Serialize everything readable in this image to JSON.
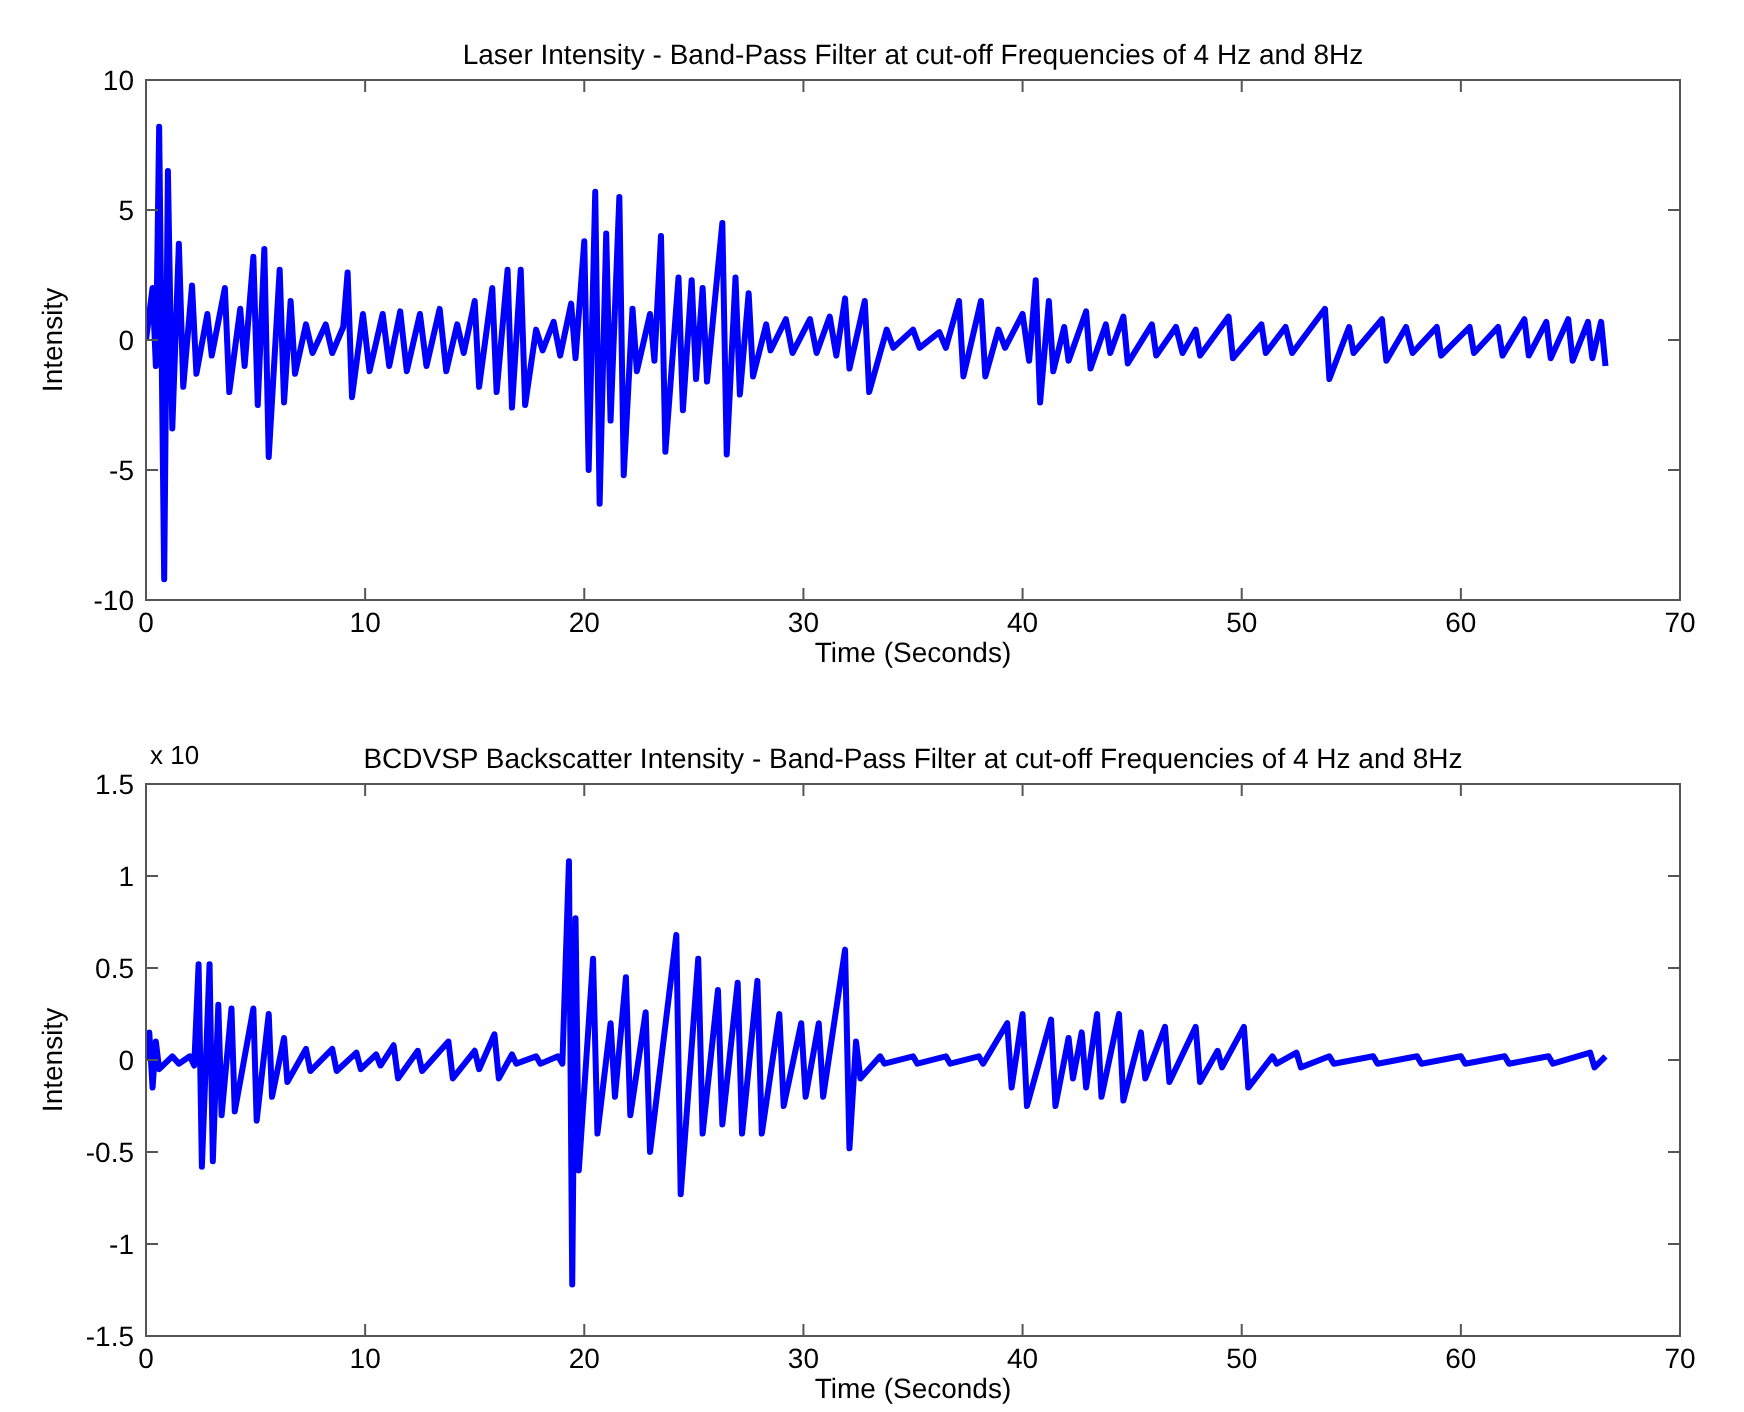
{
  "chart_data": [
    {
      "type": "line",
      "title": "Laser Intensity - Band-Pass Filter at cut-off Frequencies of 4 Hz and 8Hz",
      "xlabel": "Time (Seconds)",
      "ylabel": "Intensity",
      "xlim": [
        0,
        70
      ],
      "xticks": [
        0,
        10,
        20,
        30,
        40,
        50,
        60,
        70
      ],
      "ylim": [
        -10,
        10
      ],
      "yticks": [
        -10,
        -5,
        0,
        5,
        10
      ],
      "grid": false,
      "marker": "none",
      "line_style": "solid",
      "series": [
        {
          "color": "#0000ff",
          "x": [
            0,
            0.3,
            0.45,
            0.6,
            0.83,
            1.0,
            1.2,
            1.5,
            1.7,
            2.1,
            2.3,
            2.8,
            3.0,
            3.6,
            3.8,
            4.3,
            4.5,
            4.9,
            5.1,
            5.4,
            5.6,
            6.1,
            6.3,
            6.6,
            6.8,
            7.3,
            7.6,
            8.2,
            8.5,
            9.0,
            9.2,
            9.4,
            9.9,
            10.2,
            10.8,
            11.1,
            11.6,
            11.9,
            12.5,
            12.8,
            13.4,
            13.7,
            14.2,
            14.5,
            15.0,
            15.2,
            15.8,
            16.0,
            16.5,
            16.7,
            17.1,
            17.3,
            17.8,
            18.1,
            18.6,
            18.9,
            19.4,
            19.6,
            20.0,
            20.2,
            20.5,
            20.7,
            21.0,
            21.2,
            21.6,
            21.8,
            22.2,
            22.4,
            23.0,
            23.2,
            23.5,
            23.7,
            24.3,
            24.5,
            24.9,
            25.1,
            25.4,
            25.6,
            26.3,
            26.5,
            26.9,
            27.1,
            27.5,
            27.7,
            28.3,
            28.5,
            29.2,
            29.5,
            30.3,
            30.6,
            31.2,
            31.5,
            31.9,
            32.1,
            32.8,
            33.0,
            33.8,
            34.1,
            35.0,
            35.3,
            36.2,
            36.5,
            37.1,
            37.3,
            38.1,
            38.3,
            38.9,
            39.2,
            40.0,
            40.3,
            40.6,
            40.8,
            41.2,
            41.4,
            41.9,
            42.1,
            42.9,
            43.1,
            43.8,
            44.0,
            44.6,
            44.8,
            45.9,
            46.1,
            47.0,
            47.3,
            47.9,
            48.1,
            49.4,
            49.6,
            50.9,
            51.1,
            52.0,
            52.3,
            53.8,
            54.0,
            54.9,
            55.1,
            56.4,
            56.6,
            57.5,
            57.8,
            58.9,
            59.1,
            60.4,
            60.6,
            61.7,
            61.9,
            62.9,
            63.1,
            63.9,
            64.1,
            64.9,
            65.1,
            65.8,
            66.0,
            66.4,
            66.6
          ],
          "values": [
            0,
            2,
            -1,
            8.2,
            -9.2,
            6.5,
            -3.4,
            3.7,
            -1.8,
            2.1,
            -1.3,
            1,
            -0.6,
            2.0,
            -2.0,
            1.2,
            -1.0,
            3.2,
            -2.5,
            3.5,
            -4.5,
            2.7,
            -2.4,
            1.5,
            -1.3,
            0.6,
            -0.5,
            0.6,
            -0.5,
            0.5,
            2.6,
            -2.2,
            1.0,
            -1.2,
            1.0,
            -1.0,
            1.1,
            -1.2,
            1.0,
            -1.0,
            1.2,
            -1.2,
            0.6,
            -0.5,
            1.5,
            -1.8,
            2.0,
            -2.0,
            2.7,
            -2.6,
            2.7,
            -2.5,
            0.4,
            -0.4,
            0.7,
            -0.6,
            1.4,
            -0.7,
            3.8,
            -5,
            5.7,
            -6.3,
            4.1,
            -3.1,
            5.5,
            -5.2,
            1.2,
            -1.2,
            1.0,
            -0.8,
            4.0,
            -4.3,
            2.4,
            -2.7,
            2.3,
            -1.5,
            2.0,
            -1.6,
            4.5,
            -4.4,
            2.4,
            -2.1,
            1.8,
            -1.4,
            0.6,
            -0.4,
            0.8,
            -0.5,
            0.8,
            -0.5,
            0.9,
            -0.6,
            1.6,
            -1.1,
            1.5,
            -2.0,
            0.4,
            -0.3,
            0.4,
            -0.3,
            0.3,
            -0.3,
            1.5,
            -1.4,
            1.5,
            -1.4,
            0.4,
            -0.3,
            1.0,
            -0.8,
            2.3,
            -2.4,
            1.5,
            -1.2,
            0.5,
            -0.8,
            1.1,
            -1.1,
            0.6,
            -0.5,
            0.9,
            -0.9,
            0.6,
            -0.6,
            0.5,
            -0.5,
            0.4,
            -0.6,
            0.9,
            -0.7,
            0.6,
            -0.5,
            0.5,
            -0.5,
            1.2,
            -1.5,
            0.5,
            -0.5,
            0.8,
            -0.8,
            0.5,
            -0.5,
            0.5,
            -0.6,
            0.5,
            -0.5,
            0.5,
            -0.6,
            0.8,
            -0.6,
            0.7,
            -0.7,
            0.8,
            -0.8,
            0.7,
            -0.7,
            0.7,
            -1.0
          ]
        }
      ]
    },
    {
      "type": "line",
      "title": "BCDVSP Backscatter Intensity - Band-Pass Filter at cut-off Frequencies of 4 Hz and 8Hz",
      "xlabel": "Time (Seconds)",
      "ylabel": "Intensity",
      "annotations": [
        "x 10"
      ],
      "xlim": [
        0,
        70
      ],
      "xticks": [
        0,
        10,
        20,
        30,
        40,
        50,
        60,
        70
      ],
      "ylim": [
        -1.5,
        1.5
      ],
      "yticks": [
        -1.5,
        -1,
        -0.5,
        0,
        0.5,
        1,
        1.5
      ],
      "grid": false,
      "marker": "none",
      "line_style": "solid",
      "series": [
        {
          "color": "#0000ff",
          "x": [
            0,
            0.15,
            0.3,
            0.45,
            0.6,
            1.2,
            1.5,
            2.0,
            2.2,
            2.4,
            2.55,
            2.9,
            3.05,
            3.3,
            3.45,
            3.9,
            4.05,
            4.9,
            5.05,
            5.6,
            5.75,
            6.3,
            6.45,
            7.3,
            7.5,
            8.5,
            8.7,
            9.6,
            9.8,
            10.5,
            10.7,
            11.3,
            11.5,
            12.4,
            12.6,
            13.8,
            14.0,
            15.0,
            15.2,
            15.9,
            16.1,
            16.7,
            16.9,
            17.8,
            18.0,
            18.8,
            19.0,
            19.3,
            19.45,
            19.6,
            19.75,
            20.4,
            20.6,
            21.2,
            21.4,
            21.9,
            22.1,
            22.8,
            23.0,
            24.2,
            24.4,
            25.2,
            25.4,
            26.1,
            26.3,
            27.0,
            27.2,
            27.9,
            28.1,
            28.9,
            29.1,
            29.9,
            30.1,
            30.7,
            30.9,
            31.9,
            32.1,
            32.4,
            32.6,
            33.5,
            33.7,
            35.0,
            35.2,
            36.5,
            36.7,
            38.0,
            38.2,
            39.3,
            39.5,
            40.0,
            40.2,
            41.3,
            41.5,
            42.1,
            42.3,
            42.7,
            42.9,
            43.4,
            43.6,
            44.4,
            44.6,
            45.4,
            45.6,
            46.5,
            46.7,
            47.9,
            48.1,
            48.9,
            49.1,
            50.1,
            50.3,
            51.4,
            51.6,
            52.5,
            52.7,
            54.0,
            54.2,
            56.0,
            56.2,
            58.0,
            58.2,
            60.0,
            60.2,
            62.0,
            62.2,
            64.0,
            64.2,
            65.9,
            66.1,
            66.6
          ],
          "values": [
            0,
            0.15,
            -0.15,
            0.1,
            -0.05,
            0.02,
            -0.02,
            0.02,
            -0.03,
            0.52,
            -0.58,
            0.52,
            -0.55,
            0.3,
            -0.3,
            0.28,
            -0.28,
            0.28,
            -0.33,
            0.25,
            -0.2,
            0.12,
            -0.12,
            0.06,
            -0.06,
            0.06,
            -0.06,
            0.04,
            -0.05,
            0.03,
            -0.03,
            0.08,
            -0.1,
            0.05,
            -0.06,
            0.1,
            -0.1,
            0.05,
            -0.05,
            0.14,
            -0.1,
            0.03,
            -0.02,
            0.02,
            -0.02,
            0.02,
            -0.02,
            1.08,
            -1.22,
            0.77,
            -0.6,
            0.55,
            -0.4,
            0.2,
            -0.2,
            0.45,
            -0.3,
            0.26,
            -0.5,
            0.68,
            -0.73,
            0.55,
            -0.4,
            0.38,
            -0.35,
            0.42,
            -0.4,
            0.43,
            -0.4,
            0.25,
            -0.25,
            0.2,
            -0.2,
            0.2,
            -0.2,
            0.6,
            -0.48,
            0.1,
            -0.1,
            0.02,
            -0.02,
            0.02,
            -0.02,
            0.02,
            -0.02,
            0.02,
            -0.02,
            0.2,
            -0.15,
            0.25,
            -0.25,
            0.22,
            -0.25,
            0.12,
            -0.1,
            0.15,
            -0.15,
            0.25,
            -0.2,
            0.25,
            -0.22,
            0.15,
            -0.1,
            0.18,
            -0.12,
            0.18,
            -0.12,
            0.05,
            -0.04,
            0.18,
            -0.15,
            0.02,
            -0.02,
            0.04,
            -0.04,
            0.02,
            -0.02,
            0.02,
            -0.02,
            0.02,
            -0.02,
            0.02,
            -0.02,
            0.02,
            -0.02,
            0.02,
            -0.02,
            0.04,
            -0.04,
            0.02
          ]
        }
      ]
    }
  ]
}
